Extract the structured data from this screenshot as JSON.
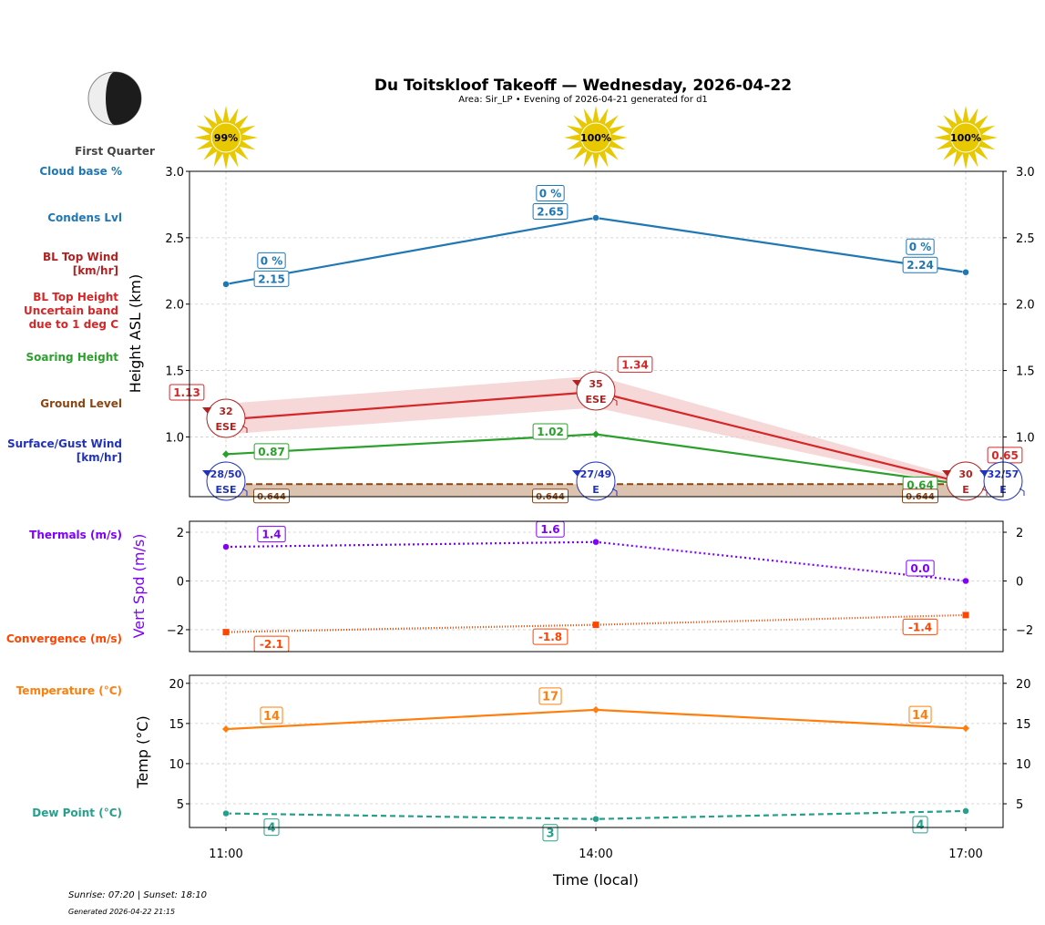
{
  "title": "Du Toitskloof Takeoff — Wednesday, 2026-04-22",
  "subtitle": "Area: Sir_LP • Evening of 2026-04-21 generated for d1",
  "moon_phase": "First Quarter",
  "footer": {
    "sun": "Sunrise: 07:20 | Sunset: 18:10",
    "generated": "Generated 2026-04-22 21:15"
  },
  "left_labels": {
    "cloud_base": "Cloud base %",
    "condens": "Condens Lvl",
    "bl_wind": [
      "BL Top Wind",
      "[km/hr]"
    ],
    "bl_height": [
      "BL Top Height",
      "Uncertain band",
      "due to 1 deg C"
    ],
    "soaring": "Soaring Height",
    "ground": "Ground Level",
    "surface_wind": [
      "Surface/Gust Wind",
      "[km/hr]"
    ],
    "thermals": "Thermals (m/s)",
    "convergence": "Convergence (m/s)",
    "temperature": "Temperature (°C)",
    "dew": "Dew Point (°C)"
  },
  "colors": {
    "cloud": "#1f77b4",
    "bl": "#d62728",
    "bl_band": "#f4c7c9",
    "soaring": "#2ca02c",
    "ground": "#8b4513",
    "ground_fill": "#dcc3b0",
    "surface_wind": "#2233bb",
    "bl_wind": "#b22222",
    "thermals": "#7f00ff",
    "convergence": "#ff4500",
    "temp": "#ff7f0e",
    "dew": "#26a08c",
    "sun": "#e8c800"
  },
  "chart_data": [
    {
      "type": "line",
      "ylabel": "Height ASL (km)",
      "x": [
        "11:00",
        "14:00",
        "17:00"
      ],
      "ylim": [
        0.55,
        3.0
      ],
      "yticks": [
        "3.0",
        "2.5",
        "2.0",
        "1.5",
        "1.0"
      ],
      "sun_percent": [
        "99%",
        "100%",
        "100%"
      ],
      "series": {
        "condens": {
          "values": [
            2.15,
            2.65,
            2.24
          ],
          "labels": [
            "2.15",
            "2.65",
            "2.24"
          ],
          "cloud_pct": [
            "0 %",
            "0 %",
            "0 %"
          ]
        },
        "bl_top": {
          "values": [
            1.13,
            1.34,
            0.65
          ],
          "labels": [
            "1.13",
            "1.34",
            "0.65"
          ],
          "band_low": [
            1.02,
            1.22,
            0.62
          ],
          "band_high": [
            1.25,
            1.46,
            0.68
          ]
        },
        "soaring": {
          "values": [
            0.87,
            1.02,
            0.64
          ],
          "labels": [
            "0.87",
            "1.02",
            "0.64"
          ]
        },
        "ground": {
          "values": [
            0.644,
            0.644,
            0.644
          ],
          "labels": [
            "0.644",
            "0.644",
            "0.644"
          ]
        },
        "bl_wind": [
          {
            "speed": "32",
            "dir": "ESE"
          },
          {
            "speed": "35",
            "dir": "ESE"
          },
          {
            "speed": "30",
            "dir": "E"
          }
        ],
        "surface_wind": [
          {
            "speed": "28/50",
            "dir": "ESE"
          },
          {
            "speed": "27/49",
            "dir": "E"
          },
          {
            "speed": "32/57",
            "dir": "E"
          }
        ]
      }
    },
    {
      "type": "line",
      "ylabel": "Vert Spd (m/s)",
      "ylim": [
        -2.9,
        2.45
      ],
      "yticks": [
        "2",
        "0",
        "−2"
      ],
      "series": {
        "thermals": {
          "values": [
            1.4,
            1.6,
            0.0
          ],
          "labels": [
            "1.4",
            "1.6",
            "0.0"
          ]
        },
        "convergence": {
          "values": [
            -2.1,
            -1.8,
            -1.4
          ],
          "labels": [
            "-2.1",
            "-1.8",
            "-1.4"
          ]
        }
      }
    },
    {
      "type": "line",
      "ylabel": "Temp (°C)",
      "xlabel": "Time (local)",
      "ylim": [
        2.05,
        21
      ],
      "yticks": [
        "20",
        "15",
        "10",
        "5"
      ],
      "series": {
        "temperature": {
          "values": [
            14.3,
            16.7,
            14.4
          ],
          "labels": [
            "14",
            "17",
            "14"
          ]
        },
        "dew_point": {
          "values": [
            3.8,
            3.1,
            4.1
          ],
          "labels": [
            "4",
            "3",
            "4"
          ]
        }
      }
    }
  ]
}
